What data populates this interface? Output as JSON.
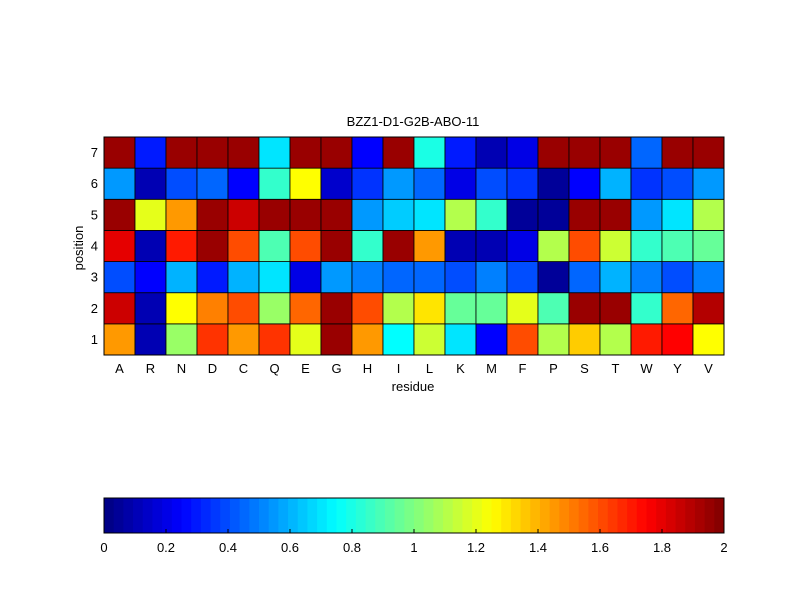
{
  "chart_data": {
    "type": "heatmap",
    "title": "BZZ1-D1-G2B-ABO-11",
    "xlabel": "residue",
    "ylabel": "position",
    "x_categories": [
      "A",
      "R",
      "N",
      "D",
      "C",
      "Q",
      "E",
      "G",
      "H",
      "I",
      "L",
      "K",
      "M",
      "F",
      "P",
      "S",
      "T",
      "W",
      "Y",
      "V"
    ],
    "y_categories": [
      "1",
      "2",
      "3",
      "4",
      "5",
      "6",
      "7"
    ],
    "values": [
      [
        1.45,
        0.1,
        1.05,
        1.65,
        1.45,
        1.65,
        1.2,
        1.95,
        1.45,
        0.75,
        1.15,
        0.7,
        0.25,
        1.6,
        1.1,
        1.35,
        1.1,
        1.7,
        1.75,
        1.25
      ],
      [
        1.85,
        0.1,
        1.25,
        1.5,
        1.6,
        1.05,
        1.55,
        1.95,
        1.6,
        1.1,
        1.3,
        0.95,
        0.95,
        1.2,
        0.9,
        1.95,
        1.95,
        0.85,
        1.55,
        1.9
      ],
      [
        0.4,
        0.25,
        0.6,
        0.3,
        0.6,
        0.7,
        0.2,
        0.55,
        0.5,
        0.45,
        0.45,
        0.4,
        0.5,
        0.4,
        0.05,
        0.45,
        0.6,
        0.5,
        0.4,
        0.5
      ],
      [
        1.8,
        0.1,
        1.7,
        1.95,
        1.6,
        0.9,
        1.6,
        1.95,
        0.85,
        1.95,
        1.45,
        0.1,
        0.1,
        0.2,
        1.1,
        1.6,
        1.15,
        0.85,
        0.9,
        0.95
      ],
      [
        1.95,
        1.2,
        1.45,
        1.95,
        1.85,
        1.95,
        1.95,
        1.95,
        0.55,
        0.65,
        0.7,
        1.1,
        0.85,
        0.05,
        0.05,
        1.95,
        1.95,
        0.55,
        0.7,
        1.1
      ],
      [
        0.55,
        0.1,
        0.4,
        0.45,
        0.25,
        0.85,
        1.25,
        0.15,
        0.35,
        0.55,
        0.45,
        0.2,
        0.4,
        0.35,
        0.05,
        0.25,
        0.6,
        0.35,
        0.4,
        0.55
      ],
      [
        1.95,
        0.3,
        1.95,
        1.95,
        1.95,
        0.7,
        1.95,
        1.95,
        0.25,
        1.95,
        0.8,
        0.3,
        0.1,
        0.2,
        1.95,
        1.95,
        1.95,
        0.45,
        1.95,
        1.95
      ]
    ],
    "colorbar": {
      "colormap": "jet",
      "range": [
        0,
        2
      ],
      "ticks": [
        "0",
        "0.2",
        "0.4",
        "0.6",
        "0.8",
        "1",
        "1.2",
        "1.4",
        "1.6",
        "1.8",
        "2"
      ]
    }
  }
}
